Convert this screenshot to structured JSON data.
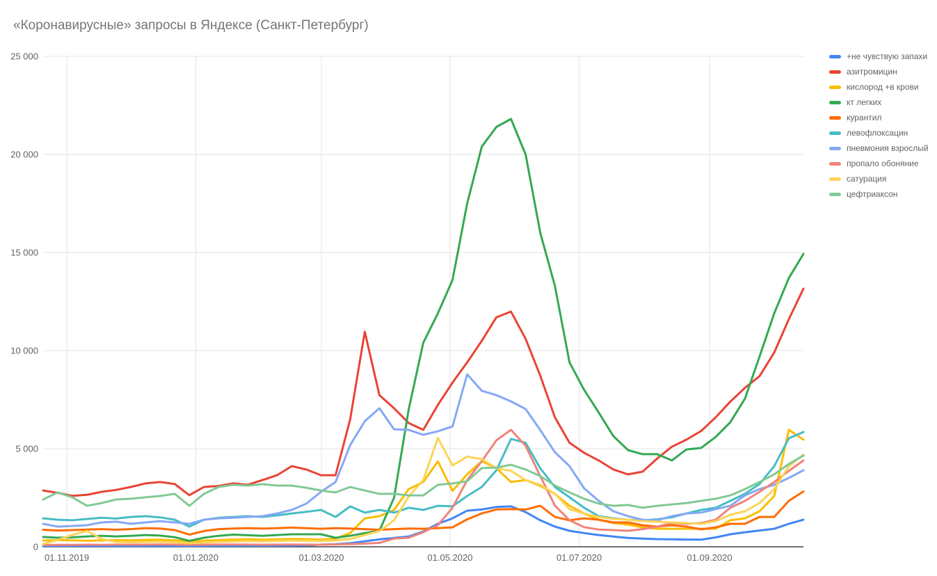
{
  "title": "«Коронавирусные» запросы в Яндексе (Санкт-Петербург)",
  "chart_data": {
    "type": "line",
    "title": "«Коронавирусные» запросы в Яндексе (Санкт-Петербург)",
    "legend_position": "right",
    "grid": true,
    "n_points": 53,
    "y_axis": {
      "max": 25000,
      "min": 0,
      "ticks": [
        {
          "value": 0,
          "label": "0"
        },
        {
          "value": 5000,
          "label": "5 000"
        },
        {
          "value": 10000,
          "label": "10 000"
        },
        {
          "value": 15000,
          "label": "15 000"
        },
        {
          "value": 20000,
          "label": "20 000"
        },
        {
          "value": 25000,
          "label": "25 000"
        }
      ]
    },
    "x_axis": {
      "unit": "weeks",
      "ticks": [
        {
          "label": "01.11.2019",
          "week": 1.62
        },
        {
          "label": "01.01.2020",
          "week": 10.44
        },
        {
          "label": "01.03.2020",
          "week": 19.03
        },
        {
          "label": "01.05.2020",
          "week": 27.83
        },
        {
          "label": "01.07.2020",
          "week": 36.66
        },
        {
          "label": "01.09.2020",
          "week": 45.58
        }
      ]
    },
    "series": [
      {
        "id": "ne-chuvstvuyu-zapahi",
        "name": "+не чувствую запахи",
        "color": "#4285F4",
        "values": [
          35,
          38,
          40,
          42,
          40,
          45,
          42,
          45,
          48,
          45,
          40,
          45,
          48,
          50,
          52,
          50,
          55,
          60,
          70,
          110,
          130,
          180,
          280,
          380,
          450,
          520,
          780,
          1170,
          1450,
          1840,
          1900,
          2030,
          2060,
          1770,
          1350,
          1030,
          815,
          700,
          600,
          520,
          450,
          420,
          390,
          380,
          370,
          360,
          480,
          640,
          740,
          830,
          920,
          1170,
          1380
        ]
      },
      {
        "id": "azitromicin",
        "name": "азитромицин",
        "color": "#EA4335",
        "values": [
          2870,
          2750,
          2600,
          2650,
          2800,
          2900,
          3050,
          3230,
          3300,
          3200,
          2630,
          3050,
          3100,
          3230,
          3160,
          3400,
          3650,
          4110,
          3940,
          3650,
          3650,
          6500,
          10960,
          7730,
          7060,
          6310,
          5960,
          7230,
          8370,
          9400,
          10500,
          11700,
          11990,
          10600,
          8720,
          6600,
          5300,
          4790,
          4400,
          3940,
          3690,
          3830,
          4500,
          5100,
          5460,
          5900,
          6600,
          7400,
          8100,
          8700,
          9900,
          11600,
          13160
        ]
      },
      {
        "id": "kislorod-v-krovi",
        "name": "кислород +в крови",
        "color": "#FBBC04",
        "values": [
          320,
          340,
          330,
          310,
          330,
          340,
          330,
          350,
          360,
          330,
          260,
          310,
          340,
          360,
          380,
          360,
          380,
          400,
          390,
          360,
          420,
          700,
          1450,
          1560,
          1880,
          2940,
          3300,
          4350,
          2850,
          3700,
          4360,
          4010,
          3300,
          3400,
          3100,
          2700,
          2090,
          1700,
          1380,
          1210,
          1130,
          990,
          920,
          920,
          920,
          920,
          920,
          1350,
          1450,
          1810,
          2590,
          5960,
          5460
        ]
      },
      {
        "id": "kt-legkih",
        "name": "кт легких",
        "color": "#34A853",
        "values": [
          500,
          460,
          480,
          530,
          560,
          530,
          560,
          600,
          570,
          490,
          300,
          460,
          560,
          620,
          590,
          560,
          600,
          640,
          640,
          640,
          460,
          560,
          700,
          815,
          2500,
          7000,
          10400,
          11900,
          13600,
          17500,
          20400,
          21400,
          21810,
          20000,
          16000,
          13300,
          9400,
          8000,
          6840,
          5640,
          4930,
          4720,
          4720,
          4400,
          4960,
          5040,
          5600,
          6350,
          7550,
          9700,
          11900,
          13700,
          14930
        ]
      },
      {
        "id": "kurantil",
        "name": "курантил",
        "color": "#FF6D01",
        "values": [
          870,
          830,
          850,
          880,
          900,
          870,
          900,
          950,
          930,
          850,
          620,
          800,
          900,
          930,
          950,
          930,
          950,
          980,
          950,
          920,
          950,
          930,
          900,
          870,
          900,
          930,
          920,
          950,
          990,
          1400,
          1700,
          1900,
          1920,
          1900,
          2090,
          1520,
          1350,
          1450,
          1380,
          1240,
          1240,
          1100,
          1030,
          1100,
          1030,
          890,
          990,
          1170,
          1170,
          1520,
          1520,
          2340,
          2820
        ]
      },
      {
        "id": "levofloksacin",
        "name": "левофлоксацин",
        "color": "#46BDC6",
        "values": [
          1450,
          1380,
          1350,
          1420,
          1480,
          1440,
          1520,
          1560,
          1500,
          1380,
          1030,
          1380,
          1480,
          1520,
          1560,
          1520,
          1600,
          1700,
          1780,
          1880,
          1520,
          2060,
          1740,
          1880,
          1740,
          1990,
          1880,
          2090,
          2060,
          2590,
          3050,
          3900,
          5500,
          5300,
          4000,
          3050,
          2520,
          1990,
          1560,
          1450,
          1380,
          1350,
          1400,
          1500,
          1700,
          1880,
          1990,
          2340,
          2700,
          3200,
          4110,
          5530,
          5850
        ]
      },
      {
        "id": "pnevmoniya-vzroslyj",
        "name": "пневмония взрослый",
        "color": "#85A8F5",
        "values": [
          1170,
          1030,
          1060,
          1100,
          1240,
          1280,
          1170,
          1240,
          1310,
          1240,
          1170,
          1380,
          1450,
          1480,
          1520,
          1560,
          1700,
          1880,
          2200,
          2800,
          3300,
          5180,
          6400,
          7060,
          5990,
          5960,
          5710,
          5890,
          6130,
          8790,
          7950,
          7730,
          7410,
          7020,
          5950,
          4820,
          4110,
          2980,
          2340,
          1810,
          1560,
          1380,
          1350,
          1560,
          1700,
          1740,
          1920,
          2090,
          2620,
          2940,
          3160,
          3510,
          3900
        ]
      },
      {
        "id": "propalo-obonyanie",
        "name": "пропало обоняние",
        "color": "#F0837A",
        "values": [
          90,
          95,
          100,
          105,
          100,
          110,
          105,
          110,
          120,
          110,
          95,
          105,
          110,
          115,
          110,
          105,
          110,
          115,
          110,
          105,
          120,
          140,
          160,
          200,
          420,
          460,
          745,
          1100,
          1990,
          3400,
          4360,
          5430,
          5960,
          5150,
          3600,
          2100,
          1350,
          1000,
          880,
          850,
          815,
          900,
          1030,
          1210,
          1170,
          1210,
          1380,
          1990,
          2340,
          2800,
          3300,
          3870,
          4400
        ]
      },
      {
        "id": "saturaciya",
        "name": "сатурация",
        "color": "#FCD456",
        "values": [
          140,
          350,
          600,
          815,
          400,
          250,
          230,
          250,
          260,
          230,
          180,
          220,
          250,
          270,
          290,
          280,
          300,
          320,
          310,
          300,
          320,
          400,
          600,
          800,
          1350,
          2560,
          3400,
          5550,
          4150,
          4600,
          4470,
          4010,
          3870,
          3400,
          3160,
          2700,
          1920,
          1700,
          1520,
          1420,
          1380,
          1310,
          1280,
          1240,
          1210,
          1170,
          1310,
          1630,
          1810,
          2230,
          2940,
          4110,
          4700
        ]
      },
      {
        "id": "ceftriakson",
        "name": "цефтриаксон",
        "color": "#81C995",
        "values": [
          2410,
          2770,
          2520,
          2090,
          2230,
          2410,
          2450,
          2520,
          2590,
          2700,
          2090,
          2700,
          3050,
          3160,
          3120,
          3190,
          3120,
          3120,
          3010,
          2870,
          2770,
          3050,
          2870,
          2700,
          2700,
          2620,
          2620,
          3160,
          3230,
          3340,
          4010,
          4040,
          4180,
          3940,
          3600,
          3120,
          2770,
          2450,
          2200,
          2090,
          2130,
          1990,
          2090,
          2160,
          2230,
          2340,
          2450,
          2620,
          2940,
          3300,
          3690,
          4220,
          4650
        ]
      }
    ]
  }
}
